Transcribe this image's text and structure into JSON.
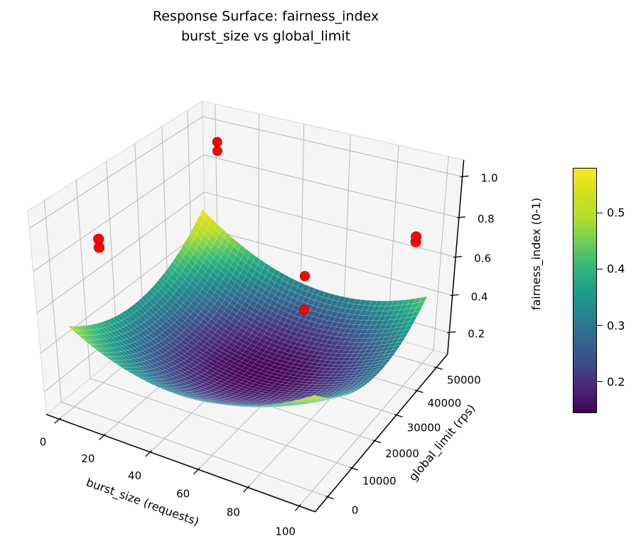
{
  "figure": {
    "title_line1": "Response Surface: fairness_index",
    "title_line2": "burst_size vs global_limit"
  },
  "colors": {
    "background": "#ffffff",
    "pane": "#f5f5f5",
    "pane_edge": "#d8d8d8",
    "grid_line": "#b8b8b8",
    "axis_line": "#000000",
    "text": "#000000",
    "scatter": "#ff0000"
  },
  "chart_data": {
    "type": "surface3d",
    "title": "Response Surface: fairness_index / burst_size vs global_limit",
    "view": {
      "elev_deg": 30,
      "azim_deg": -60,
      "projection": "perspective"
    },
    "axes": {
      "xlabel": "burst_size (requests)",
      "ylabel": "global_limit (rps)",
      "zlabel": "fairness_index (0-1)",
      "x_ticks": [
        0,
        20,
        40,
        60,
        80,
        100
      ],
      "x_tick_labels": [
        "0",
        "20",
        "40",
        "60",
        "80",
        "100"
      ],
      "y_ticks": [
        0,
        10000,
        20000,
        30000,
        40000,
        50000
      ],
      "y_tick_labels": [
        "0",
        "10000",
        "20000",
        "30000",
        "40000",
        "50000"
      ],
      "z_ticks": [
        0.2,
        0.4,
        0.6,
        0.8,
        1.0
      ],
      "z_tick_labels": [
        "0.2",
        "0.4",
        "0.6",
        "0.8",
        "1.0"
      ],
      "xlim": [
        -6,
        106
      ],
      "ylim": [
        -5000,
        56000
      ],
      "zlim": [
        0.08,
        1.08
      ],
      "grid": true
    },
    "surface": {
      "x_range": [
        0,
        100
      ],
      "y_range": [
        0,
        50000
      ],
      "grid_n": 44,
      "z_min": 0.144,
      "z_max": 0.58,
      "model": "bowl: z = a + bu*u^2 + bv*v^2 + buv*u*v + cu*u + cv*v, u=(x-50)/50, v=(y-25000)/25000",
      "coeffs": {
        "a": 0.145,
        "bu": 0.19,
        "bv": 0.1825,
        "buv": -0.0475,
        "cu": -0.0225,
        "cv": -0.0075
      },
      "corner_values": {
        "x0_y0": 0.5,
        "x100_y0": 0.5475,
        "x0_y50000": 0.58,
        "x100_y50000": 0.44
      }
    },
    "scatter": {
      "color": "#ff0000",
      "marker_radius_px": 7,
      "points_xyz_estimated": [
        [
          12,
          46000,
          1.0
        ],
        [
          12,
          46000,
          0.955
        ],
        [
          5,
          8000,
          0.855
        ],
        [
          5,
          8000,
          0.815
        ],
        [
          100,
          42000,
          0.825
        ],
        [
          100,
          42000,
          0.8
        ],
        [
          60,
          37000,
          0.55
        ],
        [
          60,
          37000,
          0.375
        ]
      ]
    },
    "colormap": {
      "name": "viridis",
      "stops": [
        "#440154",
        "#482878",
        "#3e4a89",
        "#31688e",
        "#26828e",
        "#1f9e89",
        "#35b779",
        "#6ece58",
        "#b5de2b",
        "#d0e11c",
        "#fde725"
      ],
      "range": [
        0.144,
        0.58
      ]
    },
    "colorbar": {
      "ticks": [
        0.2,
        0.3,
        0.4,
        0.5
      ],
      "tick_labels": [
        "0.2",
        "0.3",
        "0.4",
        "0.5"
      ],
      "label": ""
    }
  }
}
